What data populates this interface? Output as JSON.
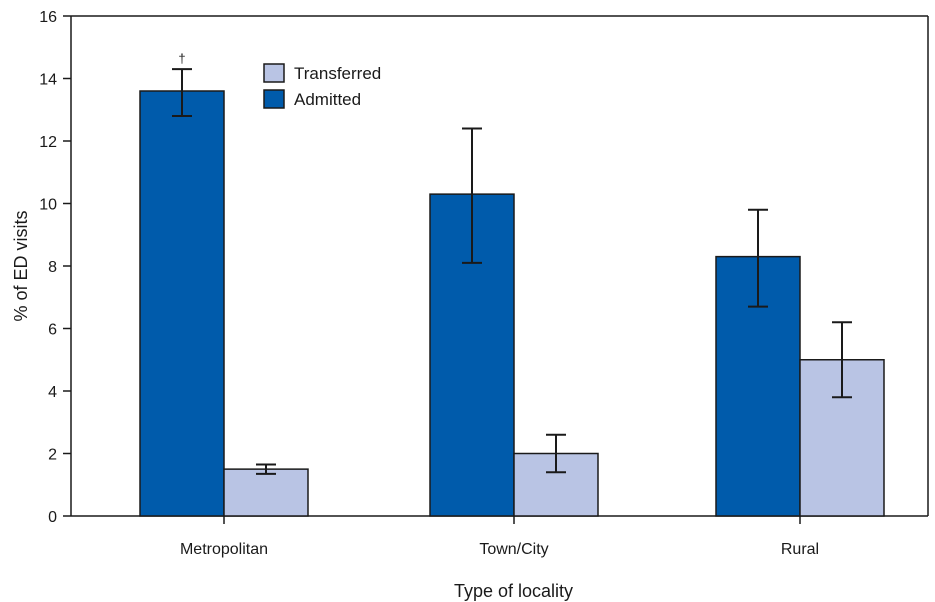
{
  "chart_data": {
    "type": "bar",
    "categories": [
      "Metropolitan",
      "Town/City",
      "Rural"
    ],
    "series": [
      {
        "name": "Admitted",
        "color": "#005bab",
        "values": [
          13.6,
          10.3,
          8.3
        ],
        "error_low": [
          12.8,
          8.1,
          6.7
        ],
        "error_high": [
          14.3,
          12.4,
          9.8
        ]
      },
      {
        "name": "Transferred",
        "color": "#b9c4e4",
        "values": [
          1.5,
          2.0,
          5.0
        ],
        "error_low": [
          1.35,
          1.4,
          3.8
        ],
        "error_high": [
          1.65,
          2.6,
          6.2
        ]
      }
    ],
    "legend_order": [
      "Transferred",
      "Admitted"
    ],
    "legend_position": "top-center",
    "xlabel": "Type of locality",
    "ylabel": "% of ED visits",
    "ylim": [
      0,
      16
    ],
    "yticks": [
      0,
      2,
      4,
      6,
      8,
      10,
      12,
      14,
      16
    ],
    "grid": false,
    "annotations": [
      {
        "text": "†",
        "category": "Metropolitan",
        "series": "Admitted"
      }
    ]
  }
}
